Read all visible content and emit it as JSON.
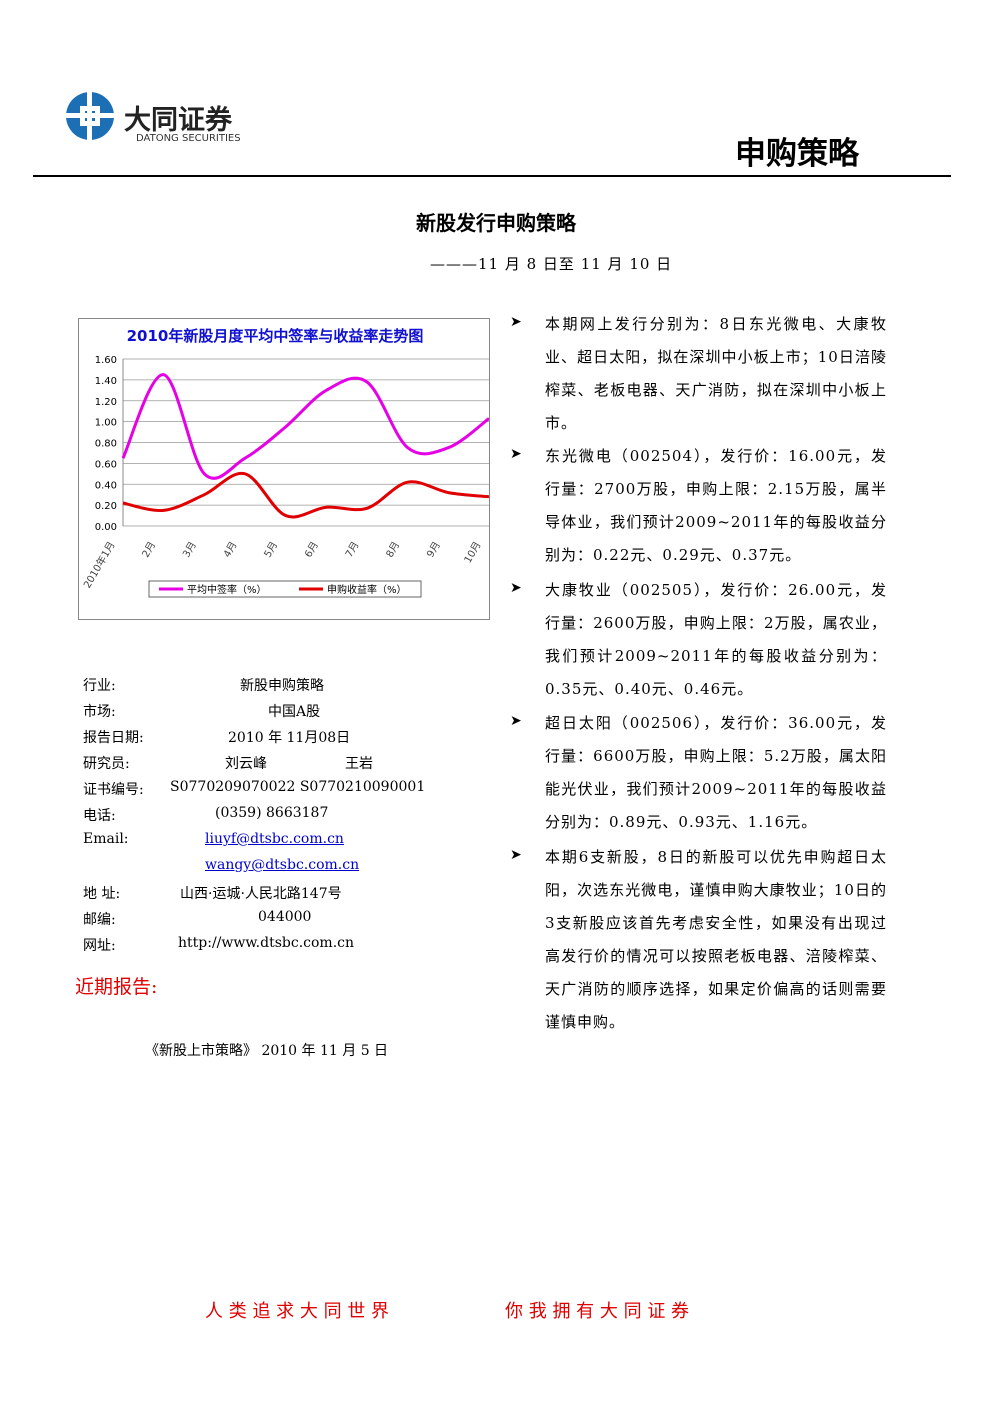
{
  "header": {
    "logo_cn": "大同证券",
    "logo_en": "DATONG SECURITIES",
    "section": "申购策略"
  },
  "title": "新股发行申购策略",
  "subtitle": "———11 月 8 日至 11 月 10 日",
  "chart_data": {
    "type": "line",
    "title": "2010年新股月度平均中签率与收益率走势图",
    "categories": [
      "2010年1月",
      "2月",
      "3月",
      "4月",
      "5月",
      "6月",
      "7月",
      "8月",
      "9月",
      "10月"
    ],
    "series": [
      {
        "name": "平均中签率（%）",
        "color": "#e600e6",
        "values": [
          0.65,
          1.45,
          0.5,
          0.65,
          0.95,
          1.3,
          1.38,
          0.75,
          0.75,
          1.03
        ]
      },
      {
        "name": "申购收益率（%）",
        "color": "#e00000",
        "values": [
          0.22,
          0.15,
          0.3,
          0.5,
          0.1,
          0.18,
          0.17,
          0.42,
          0.32,
          0.28
        ]
      }
    ],
    "ylim": [
      0,
      1.6
    ],
    "yticks": [
      {
        "value": 0,
        "label": "0.00"
      },
      {
        "value": 0.2,
        "label": "0.20"
      },
      {
        "value": 0.4,
        "label": "0.40"
      },
      {
        "value": 0.6,
        "label": "0.60"
      },
      {
        "value": 0.8,
        "label": "0.80"
      },
      {
        "value": 1,
        "label": "1.00"
      },
      {
        "value": 1.2,
        "label": "1.20"
      },
      {
        "value": 1.4,
        "label": "1.40"
      },
      {
        "value": 1.6,
        "label": "1.60"
      }
    ],
    "legend": "bottom"
  },
  "info": [
    [
      "行业:",
      "新股申购策略"
    ],
    [
      "市场:",
      "中国A股"
    ],
    [
      "报告日期:",
      "2010 年  11月08日"
    ],
    [
      "研究员:",
      "刘云峰",
      "王岩"
    ],
    [
      "证书编号:",
      "S0770209070022   S0770210090001"
    ],
    [
      "电话:",
      "(0359) 8663187"
    ],
    [
      "Email:",
      "liuyf@dtsbc.com.cn"
    ],
    [
      "",
      "wangy@dtsbc.com.cn"
    ],
    [
      "地 址:",
      "山西·运城·人民北路147号"
    ],
    [
      "邮编:",
      "044000"
    ],
    [
      "网址:",
      "http://www.dtsbc.com.cn"
    ]
  ],
  "recent": {
    "heading": "近期报告:",
    "items": [
      "《新股上市策略》 2010 年 11 月 5 日"
    ]
  },
  "bullets": [
    "本期网上发行分别为：8日东光微电、大康牧业、超日太阳，拟在深圳中小板上市；10日涪陵榨菜、老板电器、天广消防，拟在深圳中小板上市。",
    "东光微电（002504），发行价：16.00元，发行量：2700万股，申购上限：2.15万股，属半导体业，我们预计2009~2011年的每股收益分别为：0.22元、0.29元、0.37元。",
    "大康牧业（002505），发行价：26.00元，发行量：2600万股，申购上限：2万股，属农业，我们预计2009~2011年的每股收益分别为：0.35元、0.40元、0.46元。",
    "超日太阳（002506），发行价：36.00元，发行量：6600万股，申购上限：5.2万股，属太阳能光伏业，我们预计2009~2011年的每股收益分别为：0.89元、0.93元、1.16元。",
    "本期6支新股，8日的新股可以优先申购超日太阳，次选东光微电，谨慎申购大康牧业；10日的3支新股应该首先考虑安全性，如果没有出现过高发行价的情况可以按照老板电器、涪陵榨菜、天广消防的顺序选择，如果定价偏高的话则需要谨慎申购。"
  ],
  "footer": [
    "人 类 追 求 大 同 世 界",
    "你 我 拥 有 大 同 证 券"
  ]
}
